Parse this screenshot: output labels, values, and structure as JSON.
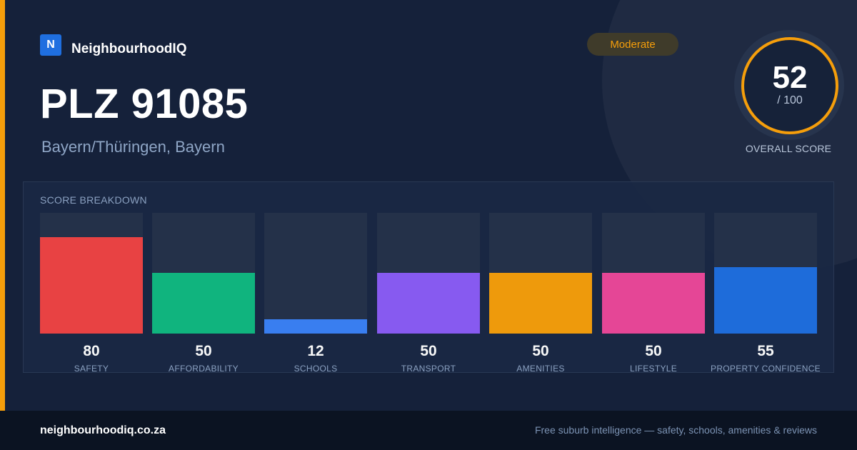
{
  "brand": {
    "logo_letter": "N",
    "name": "NeighbourhoodIQ",
    "color": "#1f6fe0"
  },
  "header": {
    "title": "PLZ 91085",
    "subtitle": "Bayern/Thüringen, Bayern",
    "rating_badge": "Moderate"
  },
  "overall": {
    "score": "52",
    "max": "/ 100",
    "caption": "OVERALL SCORE",
    "ring_color": "#f59e0b"
  },
  "breakdown": {
    "title": "SCORE BREAKDOWN",
    "metrics": [
      {
        "label": "SAFETY",
        "value": "80",
        "score": 80,
        "color": "#ef4444"
      },
      {
        "label": "AFFORDABILITY",
        "value": "50",
        "score": 50,
        "color": "#10b981"
      },
      {
        "label": "SCHOOLS",
        "value": "12",
        "score": 12,
        "color": "#3b82f6"
      },
      {
        "label": "TRANSPORT",
        "value": "50",
        "score": 50,
        "color": "#8b5cf6"
      },
      {
        "label": "AMENITIES",
        "value": "50",
        "score": 50,
        "color": "#f59e0b"
      },
      {
        "label": "LIFESTYLE",
        "value": "50",
        "score": 50,
        "color": "#ec4899"
      },
      {
        "label": "PROPERTY CONFIDENCE",
        "value": "55",
        "score": 55,
        "color": "#1f6fe0"
      }
    ]
  },
  "footer": {
    "domain": "neighbourhoodiq.co.za",
    "tagline": "Free suburb intelligence — safety, schools, amenities & reviews"
  },
  "accent_color": "#f59e0b"
}
